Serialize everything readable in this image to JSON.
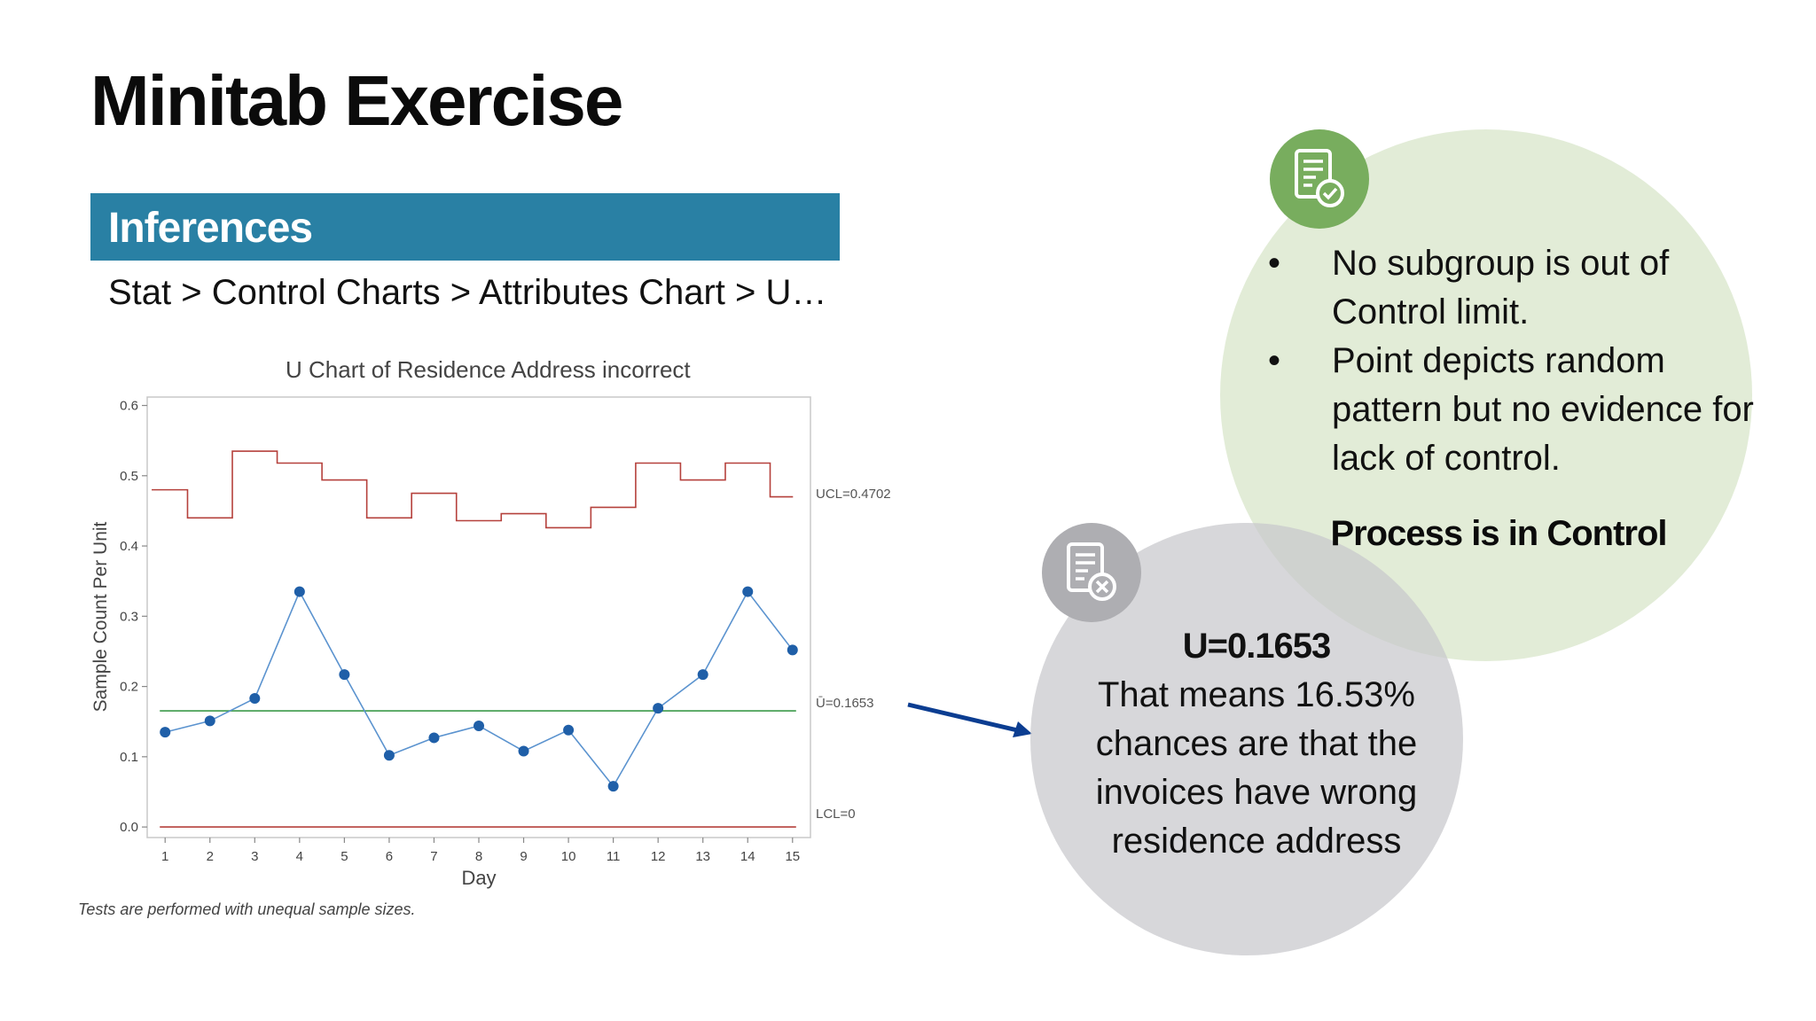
{
  "slide": {
    "title": "Minitab Exercise",
    "section_banner": "Inferences",
    "menu_path": "Stat > Control Charts > Attributes Chart > U…"
  },
  "chart_data": {
    "type": "line",
    "title": "U Chart of Residence Address incorrect",
    "xlabel": "Day",
    "ylabel": "Sample Count Per Unit",
    "x": [
      1,
      2,
      3,
      4,
      5,
      6,
      7,
      8,
      9,
      10,
      11,
      12,
      13,
      14,
      15
    ],
    "x_tick_labels": [
      "1",
      "2",
      "3",
      "4",
      "5",
      "6",
      "7",
      "8",
      "9",
      "10",
      "11",
      "12",
      "13",
      "14",
      "15"
    ],
    "ylim": [
      0,
      0.6
    ],
    "y_ticks": [
      0.0,
      0.1,
      0.2,
      0.3,
      0.4,
      0.5,
      0.6
    ],
    "y_tick_labels": [
      "0.0",
      "0.1",
      "0.2",
      "0.3",
      "0.4",
      "0.5",
      "0.6"
    ],
    "series": [
      {
        "values": [
          0.135,
          0.151,
          0.183,
          0.335,
          0.217,
          0.102,
          0.127,
          0.144,
          0.108,
          0.138,
          0.058,
          0.169,
          0.217,
          0.335,
          0.252
        ],
        "color": "#1f5fa8"
      },
      {
        "values": [
          0.48,
          0.44,
          0.535,
          0.518,
          0.494,
          0.44,
          0.475,
          0.436,
          0.446,
          0.426,
          0.455,
          0.518,
          0.494,
          0.518,
          0.47
        ],
        "color": "#b5413c",
        "style": "step"
      }
    ],
    "center_line": {
      "value": 0.1653,
      "label": "Ū=0.1653",
      "color": "#3c9a4a"
    },
    "ucl_label": "UCL=0.4702",
    "lcl": {
      "value": 0,
      "label": "LCL=0",
      "color": "#b5413c"
    },
    "grid": false,
    "footnote": "Tests are performed with unequal sample sizes."
  },
  "green_panel": {
    "bullets": [
      "No subgroup is out of Control limit.",
      "Point depicts random pattern but no evidence for lack of control."
    ],
    "bullet_symbol": "•",
    "conclusion": "Process is in Control",
    "icon": "document-check-icon",
    "color": "#78ad5e"
  },
  "gray_panel": {
    "value": "U=0.1653",
    "explanation": "That means 16.53% chances are that the invoices have wrong residence address",
    "icon": "document-x-icon",
    "color": "#aeaeb2"
  },
  "arrow_color": "#0b3d91"
}
